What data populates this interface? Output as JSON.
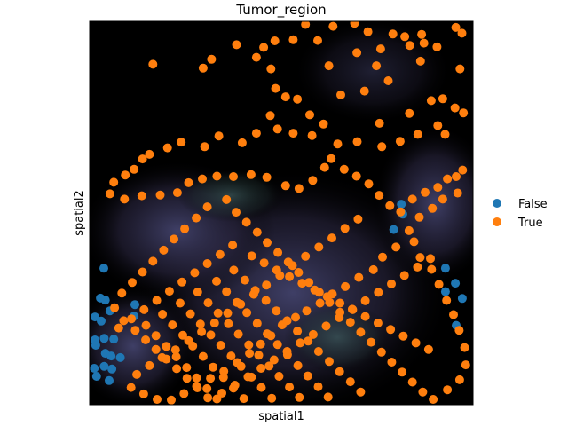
{
  "chart_data": {
    "type": "scatter",
    "title": "Tumor_region",
    "xlabel": "spatial1",
    "ylabel": "spatial2",
    "xlim": [
      0,
      100
    ],
    "ylim": [
      0,
      100
    ],
    "y_inverted": true,
    "background": "fluorescence tissue image",
    "grid": false,
    "ticks": false,
    "legend_position": "right",
    "series": [
      {
        "name": "False",
        "color": "#1f77b4",
        "points": [
          [
            3.7,
            64.4
          ],
          [
            2.8,
            72.2
          ],
          [
            4.1,
            72.7
          ],
          [
            5.3,
            75.5
          ],
          [
            1.4,
            77.1
          ],
          [
            3.0,
            78.2
          ],
          [
            11.8,
            73.9
          ],
          [
            11.6,
            76.9
          ],
          [
            1.4,
            83.1
          ],
          [
            1.6,
            84.5
          ],
          [
            3.8,
            82.7
          ],
          [
            6.3,
            82.9
          ],
          [
            4.1,
            86.6
          ],
          [
            5.6,
            87.3
          ],
          [
            8.0,
            87.7
          ],
          [
            1.2,
            90.5
          ],
          [
            3.8,
            90.0
          ],
          [
            5.8,
            90.7
          ],
          [
            1.8,
            92.6
          ],
          [
            5.1,
            93.7
          ],
          [
            81.3,
            47.7
          ],
          [
            81.7,
            50.3
          ],
          [
            79.3,
            54.3
          ],
          [
            92.8,
            64.4
          ],
          [
            92.8,
            70.5
          ],
          [
            95.4,
            68.3
          ],
          [
            97.2,
            72.3
          ],
          [
            95.6,
            79.3
          ]
        ]
      },
      {
        "name": "True",
        "color": "#ff7f0e",
        "points": [
          [
            56.3,
            0.8
          ],
          [
            63.5,
            1.3
          ],
          [
            69.1,
            0.5
          ],
          [
            72.6,
            2.7
          ],
          [
            79.1,
            3.3
          ],
          [
            82.2,
            4.0
          ],
          [
            86.6,
            3.4
          ],
          [
            95.5,
            1.6
          ],
          [
            97.1,
            3.1
          ],
          [
            87.2,
            5.7
          ],
          [
            83.5,
            6.3
          ],
          [
            75.9,
            7.2
          ],
          [
            69.7,
            8.2
          ],
          [
            59.5,
            5.0
          ],
          [
            53.1,
            4.8
          ],
          [
            48.3,
            5.1
          ],
          [
            45.4,
            6.8
          ],
          [
            38.3,
            6.1
          ],
          [
            43.5,
            9.4
          ],
          [
            31.8,
            9.9
          ],
          [
            16.5,
            11.2
          ],
          [
            29.6,
            12.2
          ],
          [
            47.3,
            12.4
          ],
          [
            62.4,
            11.6
          ],
          [
            74.8,
            11.6
          ],
          [
            86.3,
            10.4
          ],
          [
            90.6,
            6.7
          ],
          [
            96.6,
            12.4
          ],
          [
            77.9,
            15.5
          ],
          [
            71.7,
            18.2
          ],
          [
            65.5,
            19.2
          ],
          [
            48.5,
            17.5
          ],
          [
            51.1,
            19.7
          ],
          [
            54.2,
            20.3
          ],
          [
            47.1,
            24.6
          ],
          [
            57.4,
            24.4
          ],
          [
            61.0,
            26.8
          ],
          [
            75.6,
            26.6
          ],
          [
            83.4,
            24.0
          ],
          [
            89.1,
            20.7
          ],
          [
            92.1,
            20.2
          ],
          [
            95.3,
            22.6
          ],
          [
            97.5,
            23.9
          ],
          [
            90.8,
            27.2
          ],
          [
            92.7,
            29.5
          ],
          [
            85.6,
            29.5
          ],
          [
            81.0,
            31.3
          ],
          [
            76.2,
            32.7
          ],
          [
            69.8,
            31.4
          ],
          [
            64.7,
            32.0
          ],
          [
            58.0,
            29.8
          ],
          [
            53.1,
            29.2
          ],
          [
            49.0,
            28.1
          ],
          [
            43.5,
            29.2
          ],
          [
            39.8,
            31.7
          ],
          [
            33.7,
            29.9
          ],
          [
            30.0,
            32.7
          ],
          [
            23.9,
            31.5
          ],
          [
            20.3,
            33.0
          ],
          [
            15.6,
            34.7
          ],
          [
            13.8,
            35.9
          ],
          [
            11.6,
            38.6
          ],
          [
            9.3,
            40.1
          ],
          [
            6.3,
            42.0
          ],
          [
            5.3,
            45.0
          ],
          [
            9.1,
            46.4
          ],
          [
            13.6,
            45.5
          ],
          [
            18.4,
            45.3
          ],
          [
            22.9,
            44.7
          ],
          [
            25.8,
            42.1
          ],
          [
            29.4,
            41.1
          ],
          [
            33.2,
            40.4
          ],
          [
            37.5,
            40.5
          ],
          [
            42.1,
            40.0
          ],
          [
            46.2,
            40.7
          ],
          [
            51.1,
            42.9
          ],
          [
            54.6,
            43.6
          ],
          [
            58.2,
            41.5
          ],
          [
            61.3,
            38.1
          ],
          [
            63.0,
            35.8
          ],
          [
            66.4,
            38.6
          ],
          [
            69.6,
            40.4
          ],
          [
            72.8,
            42.4
          ],
          [
            75.5,
            45.4
          ],
          [
            78.3,
            48.1
          ],
          [
            81.1,
            49.7
          ],
          [
            84.2,
            46.4
          ],
          [
            87.5,
            44.6
          ],
          [
            90.8,
            43.3
          ],
          [
            93.3,
            41.1
          ],
          [
            95.6,
            40.5
          ],
          [
            97.3,
            38.8
          ],
          [
            96.0,
            44.8
          ],
          [
            92.1,
            46.4
          ],
          [
            89.4,
            48.8
          ],
          [
            86.0,
            51.1
          ],
          [
            83.3,
            54.6
          ],
          [
            79.9,
            58.9
          ],
          [
            76.4,
            61.5
          ],
          [
            74.0,
            64.8
          ],
          [
            70.2,
            66.8
          ],
          [
            66.7,
            69.2
          ],
          [
            63.3,
            71.1
          ],
          [
            60.1,
            73.5
          ],
          [
            56.6,
            75.5
          ],
          [
            53.7,
            77.2
          ],
          [
            50.2,
            79.2
          ],
          [
            47.3,
            82.0
          ],
          [
            44.6,
            84.2
          ],
          [
            41.7,
            86.6
          ],
          [
            38.5,
            89.0
          ],
          [
            35.0,
            91.3
          ],
          [
            31.5,
            93.1
          ],
          [
            27.9,
            95.2
          ],
          [
            24.6,
            97.1
          ],
          [
            21.3,
            98.8
          ],
          [
            17.6,
            98.6
          ],
          [
            14.1,
            97.2
          ],
          [
            10.8,
            95.5
          ],
          [
            12.3,
            92.1
          ],
          [
            15.6,
            89.8
          ],
          [
            18.9,
            87.7
          ],
          [
            22.4,
            85.7
          ],
          [
            25.8,
            83.3
          ],
          [
            29.2,
            81.0
          ],
          [
            32.6,
            78.7
          ],
          [
            36.0,
            76.1
          ],
          [
            39.4,
            73.8
          ],
          [
            42.8,
            71.2
          ],
          [
            46.1,
            68.8
          ],
          [
            49.6,
            66.3
          ],
          [
            52.9,
            63.7
          ],
          [
            56.3,
            61.3
          ],
          [
            59.8,
            58.9
          ],
          [
            63.2,
            56.5
          ],
          [
            66.6,
            54.0
          ],
          [
            70.0,
            51.6
          ],
          [
            35.7,
            46.5
          ],
          [
            38.2,
            49.8
          ],
          [
            40.9,
            52.4
          ],
          [
            43.7,
            55.0
          ],
          [
            46.3,
            57.7
          ],
          [
            49.1,
            60.3
          ],
          [
            51.8,
            62.8
          ],
          [
            54.5,
            65.5
          ],
          [
            57.2,
            68.1
          ],
          [
            59.9,
            70.7
          ],
          [
            62.6,
            73.3
          ],
          [
            65.3,
            75.9
          ],
          [
            68.0,
            78.5
          ],
          [
            70.7,
            81.1
          ],
          [
            73.4,
            83.7
          ],
          [
            76.1,
            86.3
          ],
          [
            78.8,
            88.9
          ],
          [
            81.5,
            91.5
          ],
          [
            84.2,
            94.1
          ],
          [
            86.9,
            96.7
          ],
          [
            89.6,
            98.6
          ],
          [
            93.3,
            96.1
          ],
          [
            96.5,
            93.5
          ],
          [
            98.1,
            89.6
          ],
          [
            97.8,
            85.1
          ],
          [
            96.4,
            80.6
          ],
          [
            94.9,
            76.5
          ],
          [
            93.1,
            72.8
          ],
          [
            91.1,
            68.6
          ],
          [
            89.2,
            64.7
          ],
          [
            86.2,
            61.6
          ],
          [
            84.6,
            57.5
          ],
          [
            30.7,
            48.4
          ],
          [
            27.8,
            51.3
          ],
          [
            24.8,
            54.1
          ],
          [
            22.0,
            56.8
          ],
          [
            19.3,
            59.7
          ],
          [
            16.5,
            62.6
          ],
          [
            13.8,
            65.4
          ],
          [
            11.1,
            68.1
          ],
          [
            8.4,
            70.9
          ],
          [
            6.5,
            74.7
          ],
          [
            8.9,
            78.1
          ],
          [
            11.9,
            80.6
          ],
          [
            14.6,
            83.1
          ],
          [
            17.3,
            85.6
          ],
          [
            20.0,
            88.1
          ],
          [
            22.7,
            90.6
          ],
          [
            25.4,
            93.1
          ],
          [
            28.1,
            95.6
          ],
          [
            30.8,
            98.2
          ],
          [
            34.5,
            97.0
          ],
          [
            37.9,
            94.9
          ],
          [
            41.3,
            92.7
          ],
          [
            44.7,
            90.5
          ],
          [
            48.1,
            88.3
          ],
          [
            51.5,
            86.1
          ],
          [
            54.9,
            83.9
          ],
          [
            58.3,
            81.7
          ],
          [
            61.7,
            79.5
          ],
          [
            65.1,
            77.3
          ],
          [
            68.5,
            75.1
          ],
          [
            71.9,
            72.9
          ],
          [
            75.3,
            70.7
          ],
          [
            78.7,
            68.5
          ],
          [
            82.1,
            66.3
          ],
          [
            85.5,
            64.1
          ],
          [
            88.9,
            61.9
          ],
          [
            42.3,
            61.2
          ],
          [
            45.5,
            63.0
          ],
          [
            48.8,
            64.9
          ],
          [
            52.1,
            66.6
          ],
          [
            55.4,
            68.3
          ],
          [
            58.7,
            70.1
          ],
          [
            62.0,
            71.8
          ],
          [
            65.3,
            73.5
          ],
          [
            68.6,
            75.2
          ],
          [
            71.9,
            77.0
          ],
          [
            75.2,
            78.7
          ],
          [
            78.5,
            80.4
          ],
          [
            81.8,
            82.1
          ],
          [
            85.1,
            83.9
          ],
          [
            88.4,
            85.6
          ],
          [
            37.3,
            58.4
          ],
          [
            34.0,
            60.8
          ],
          [
            30.7,
            63.2
          ],
          [
            27.4,
            65.6
          ],
          [
            24.1,
            68.0
          ],
          [
            20.8,
            70.4
          ],
          [
            17.5,
            72.8
          ],
          [
            14.2,
            75.2
          ],
          [
            10.9,
            77.6
          ],
          [
            7.6,
            80.0
          ],
          [
            37.6,
            64.9
          ],
          [
            40.5,
            67.5
          ],
          [
            43.2,
            70.2
          ],
          [
            46.0,
            72.8
          ],
          [
            48.7,
            75.5
          ],
          [
            51.5,
            78.1
          ],
          [
            54.2,
            80.8
          ],
          [
            57.0,
            83.4
          ],
          [
            59.7,
            86.1
          ],
          [
            62.5,
            88.7
          ],
          [
            65.2,
            91.4
          ],
          [
            68.0,
            94.0
          ],
          [
            70.7,
            96.7
          ],
          [
            33.1,
            67.8
          ],
          [
            35.7,
            70.5
          ],
          [
            38.4,
            73.3
          ],
          [
            41.0,
            76.0
          ],
          [
            43.7,
            78.8
          ],
          [
            46.3,
            81.5
          ],
          [
            49.0,
            84.3
          ],
          [
            51.6,
            87.0
          ],
          [
            54.3,
            89.8
          ],
          [
            56.9,
            92.5
          ],
          [
            59.6,
            95.3
          ],
          [
            62.2,
            98.0
          ],
          [
            28.2,
            70.6
          ],
          [
            30.9,
            73.4
          ],
          [
            33.5,
            76.1
          ],
          [
            36.2,
            78.9
          ],
          [
            38.8,
            81.6
          ],
          [
            41.5,
            84.4
          ],
          [
            44.1,
            87.1
          ],
          [
            46.8,
            89.9
          ],
          [
            49.4,
            92.6
          ],
          [
            52.1,
            95.4
          ],
          [
            54.7,
            98.1
          ],
          [
            23.6,
            73.5
          ],
          [
            26.3,
            76.3
          ],
          [
            28.9,
            79.0
          ],
          [
            31.6,
            81.8
          ],
          [
            34.2,
            84.5
          ],
          [
            36.9,
            87.3
          ],
          [
            39.5,
            90.0
          ],
          [
            42.2,
            92.8
          ],
          [
            44.8,
            95.5
          ],
          [
            47.5,
            98.3
          ],
          [
            19.0,
            76.4
          ],
          [
            21.6,
            79.2
          ],
          [
            24.3,
            81.9
          ],
          [
            26.9,
            84.7
          ],
          [
            29.6,
            87.4
          ],
          [
            32.2,
            90.2
          ],
          [
            34.9,
            92.9
          ],
          [
            37.5,
            95.7
          ],
          [
            40.2,
            98.4
          ],
          [
            14.7,
            79.3
          ],
          [
            17.3,
            82.0
          ],
          [
            20.0,
            84.8
          ],
          [
            22.6,
            87.5
          ],
          [
            25.3,
            90.3
          ],
          [
            27.9,
            93.0
          ],
          [
            30.6,
            95.8
          ],
          [
            33.2,
            98.5
          ]
        ]
      }
    ]
  },
  "legend": {
    "items": [
      {
        "label": "False",
        "color": "#1f77b4"
      },
      {
        "label": "True",
        "color": "#ff7f0e"
      }
    ]
  }
}
